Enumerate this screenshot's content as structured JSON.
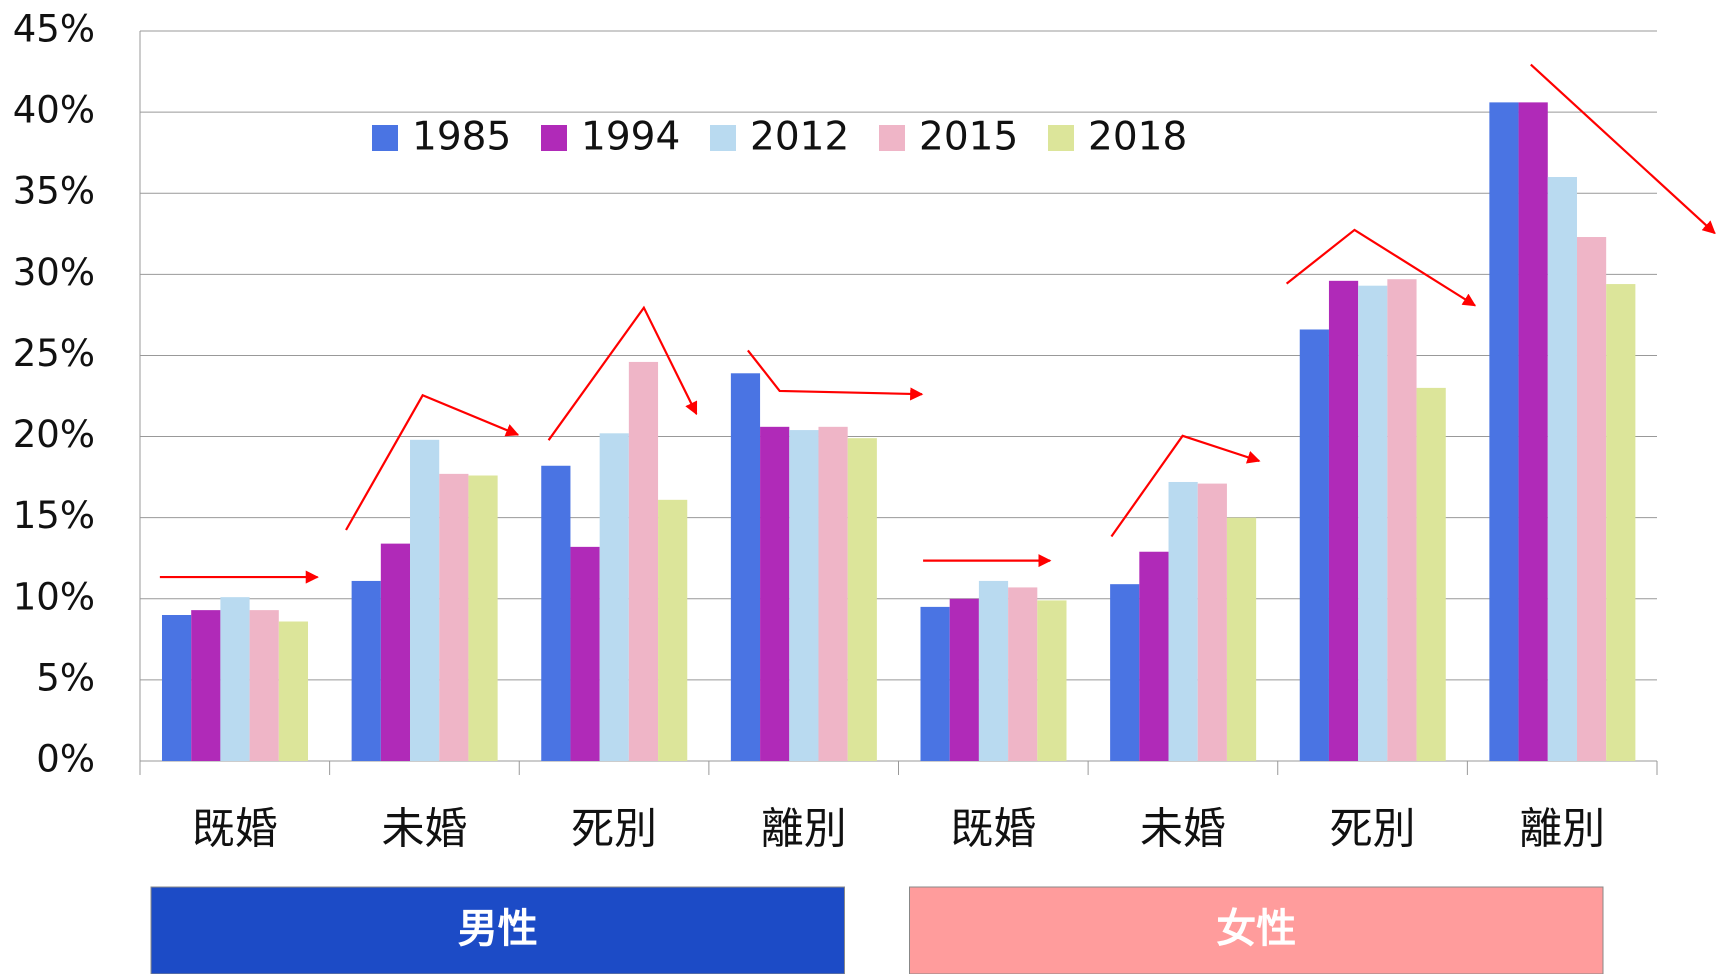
{
  "chart_data": {
    "type": "bar",
    "categories": [
      "既婚",
      "未婚",
      "死別",
      "離別",
      "既婚",
      "未婚",
      "死別",
      "離別"
    ],
    "series": [
      {
        "name": "1985",
        "color": "#4a74e3",
        "values": [
          9.0,
          11.1,
          18.2,
          23.9,
          9.5,
          10.9,
          26.6,
          40.6
        ]
      },
      {
        "name": "1994",
        "color": "#b02ab8",
        "values": [
          9.3,
          13.4,
          13.2,
          20.6,
          10.0,
          12.9,
          29.6,
          40.6
        ]
      },
      {
        "name": "2012",
        "color": "#b9daf0",
        "values": [
          10.1,
          19.8,
          20.2,
          20.4,
          11.1,
          17.2,
          29.3,
          36.0
        ]
      },
      {
        "name": "2015",
        "color": "#efb5c7",
        "values": [
          9.3,
          17.7,
          24.6,
          20.6,
          10.7,
          17.1,
          29.7,
          32.3
        ]
      },
      {
        "name": "2018",
        "color": "#dce59a",
        "values": [
          8.6,
          17.6,
          16.1,
          19.9,
          9.9,
          15.0,
          23.0,
          29.4
        ]
      }
    ],
    "groups": [
      {
        "label": "男性",
        "color": "#1c4bc6"
      },
      {
        "label": "女性",
        "color": "#ff9c9c"
      }
    ],
    "ylim": [
      0,
      45
    ],
    "yticks": [
      {
        "value": 0,
        "label": "0%"
      },
      {
        "value": 5,
        "label": "5%"
      },
      {
        "value": 10,
        "label": "10%"
      },
      {
        "value": 15,
        "label": "15%"
      },
      {
        "value": 20,
        "label": "20%"
      },
      {
        "value": 25,
        "label": "25%"
      },
      {
        "value": 30,
        "label": "30%"
      },
      {
        "value": 35,
        "label": "35%"
      },
      {
        "value": 40,
        "label": "40%"
      },
      {
        "value": 45,
        "label": "45%"
      }
    ],
    "grid": true
  }
}
